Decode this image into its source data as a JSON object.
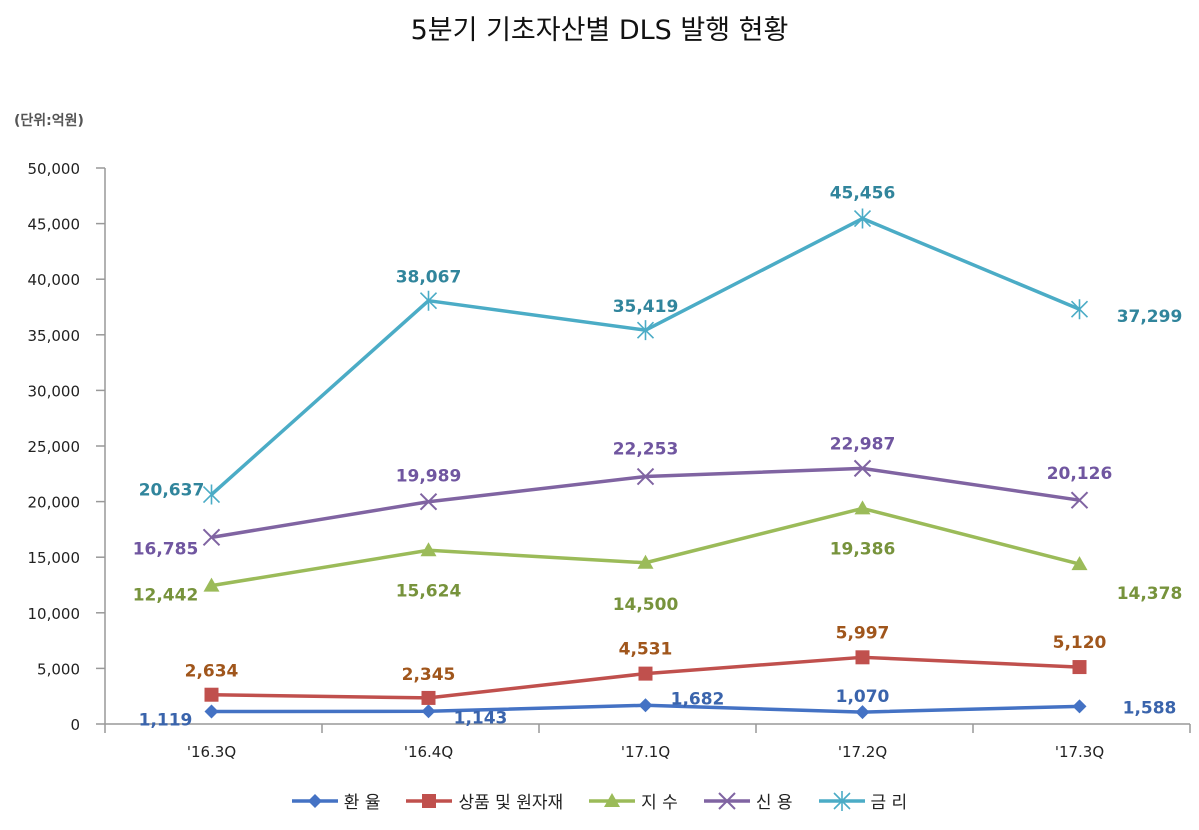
{
  "chart_data": {
    "type": "line",
    "title": "5분기 기초자산별 DLS 발행 현황",
    "unit_label": "(단위:억원)",
    "categories": [
      "'16.3Q",
      "'16.4Q",
      "'17.1Q",
      "'17.2Q",
      "'17.3Q"
    ],
    "ylim": [
      0,
      50000
    ],
    "yticks": [
      "0",
      "5,000",
      "10,000",
      "15,000",
      "20,000",
      "25,000",
      "30,000",
      "35,000",
      "40,000",
      "45,000",
      "50,000"
    ],
    "grid": false,
    "legend_position": "bottom",
    "series": [
      {
        "name": "환 율",
        "color": "#4472C4",
        "label_color": "#3A64AC",
        "marker": "diamond",
        "values": [
          1119,
          1143,
          1682,
          1070,
          1588
        ],
        "labels": [
          "1,119",
          "1,143",
          "1,682",
          "1,070",
          "1,588"
        ]
      },
      {
        "name": "상품 및 원자재",
        "color": "#C0504D",
        "label_color": "#A0561C",
        "marker": "square",
        "values": [
          2634,
          2345,
          4531,
          5997,
          5120
        ],
        "labels": [
          "2,634",
          "2,345",
          "4,531",
          "5,997",
          "5,120"
        ]
      },
      {
        "name": "지 수",
        "color": "#9BBB59",
        "label_color": "#77933C",
        "marker": "triangle",
        "values": [
          12442,
          15624,
          14500,
          19386,
          14378
        ],
        "labels": [
          "12,442",
          "15,624",
          "14,500",
          "19,386",
          "14,378"
        ]
      },
      {
        "name": "신 용",
        "color": "#8064A2",
        "label_color": "#7056A0",
        "marker": "x",
        "values": [
          16785,
          19989,
          22253,
          22987,
          20126
        ],
        "labels": [
          "16,785",
          "19,989",
          "22,253",
          "22,987",
          "20,126"
        ]
      },
      {
        "name": "금 리",
        "color": "#4BACC6",
        "label_color": "#31859C",
        "marker": "star",
        "values": [
          20637,
          38067,
          35419,
          45456,
          37299
        ],
        "labels": [
          "20,637",
          "38,067",
          "35,419",
          "45,456",
          "37,299"
        ]
      }
    ]
  }
}
